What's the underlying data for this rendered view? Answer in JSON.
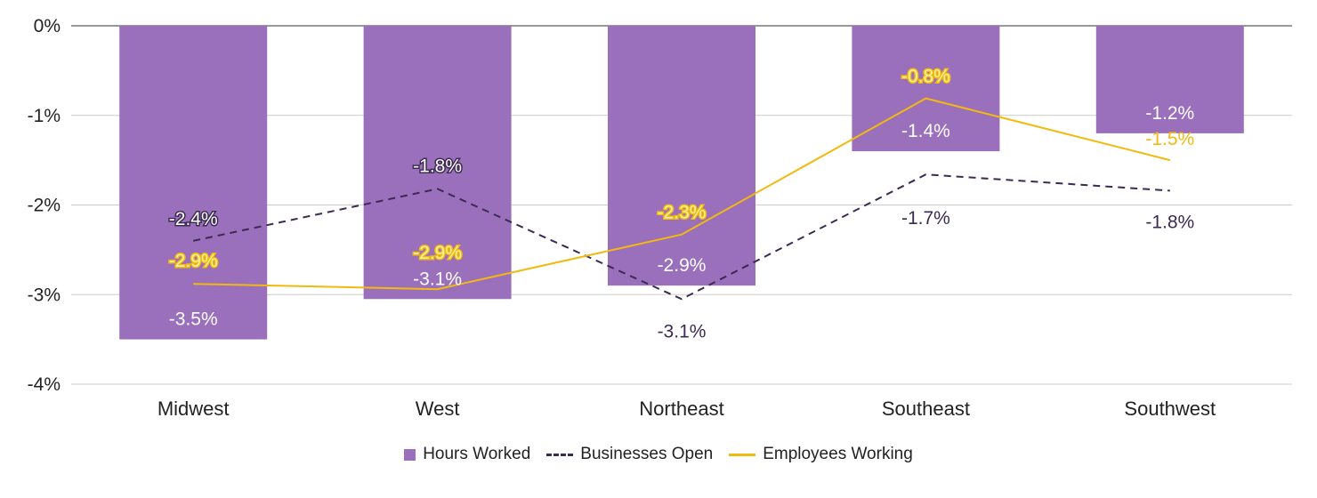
{
  "chart_data": {
    "type": "bar",
    "categories": [
      "Midwest",
      "West",
      "Northeast",
      "Southeast",
      "Southwest"
    ],
    "ylim": [
      -4,
      0
    ],
    "yticks": [
      {
        "value": 0,
        "label": "0%"
      },
      {
        "value": -1,
        "label": "-1%"
      },
      {
        "value": -2,
        "label": "-2%"
      },
      {
        "value": -3,
        "label": "-3%"
      },
      {
        "value": -4,
        "label": "-4%"
      }
    ],
    "grid": true,
    "legend_position": "bottom",
    "series": [
      {
        "name": "Hours Worked",
        "kind": "bar",
        "color": "#9a6fbc",
        "values": [
          -3.5,
          -3.05,
          -2.9,
          -1.4,
          -1.2
        ],
        "labels": [
          "-3.5%",
          "-3.1%",
          "-2.9%",
          "-1.4%",
          "-1.2%"
        ]
      },
      {
        "name": "Businesses Open",
        "kind": "line",
        "style": "dashed",
        "color": "#3d2a52",
        "values": [
          -2.4,
          -1.82,
          -3.05,
          -1.66,
          -1.84
        ],
        "labels": [
          "-2.4%",
          "-1.8%",
          "-3.1%",
          "-1.7%",
          "-1.8%"
        ]
      },
      {
        "name": "Employees Working",
        "kind": "line",
        "style": "solid",
        "color": "#f2b90f",
        "values": [
          -2.88,
          -2.94,
          -2.33,
          -0.81,
          -1.5
        ],
        "labels": [
          "-2.9%",
          "-2.9%",
          "-2.3%",
          "-0.8%",
          "-1.5%"
        ]
      }
    ]
  }
}
